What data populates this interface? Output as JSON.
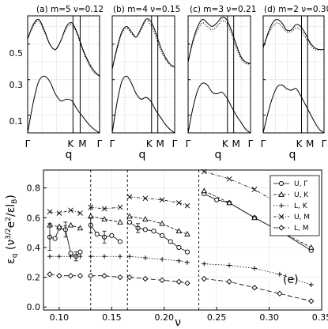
{
  "chart_data": [
    {
      "type": "line",
      "title": "(a) m=5 ν=0.12",
      "xlabel": "q",
      "x_ticks": [
        "Γ",
        "K",
        "M",
        "Γ"
      ],
      "ylim": [
        0.0,
        0.66
      ],
      "y_ticks": [
        0.1,
        0.3,
        0.5
      ],
      "grid": true,
      "series": [
        {
          "style": "solid",
          "values": [
            0.53,
            0.61,
            0.64,
            0.58,
            0.5,
            0.47,
            0.52,
            0.6,
            0.62,
            0.56,
            0.47,
            0.4,
            0.35,
            0.32
          ]
        },
        {
          "style": "dotted",
          "values": [
            0.53,
            0.6,
            0.63,
            0.57,
            0.5,
            0.47,
            0.52,
            0.59,
            0.61,
            0.55,
            0.46,
            0.39,
            0.34,
            0.32
          ]
        },
        {
          "style": "solid",
          "values": [
            0.0,
            0.17,
            0.29,
            0.32,
            0.29,
            0.22,
            0.18,
            0.19,
            0.18,
            0.13,
            0.09,
            0.05,
            0.02,
            0.0
          ]
        }
      ]
    },
    {
      "type": "line",
      "title": "(b) m=4 ν=0.15",
      "xlabel": "q",
      "x_ticks": [
        "Γ",
        "K",
        "M",
        "Γ"
      ],
      "ylim": [
        0.0,
        0.66
      ],
      "grid": true,
      "series": [
        {
          "style": "solid",
          "values": [
            0.36,
            0.48,
            0.57,
            0.6,
            0.57,
            0.54,
            0.59,
            0.64,
            0.63,
            0.57,
            0.49,
            0.43,
            0.39,
            0.37
          ]
        },
        {
          "style": "dotted",
          "values": [
            0.36,
            0.47,
            0.56,
            0.59,
            0.56,
            0.54,
            0.58,
            0.63,
            0.61,
            0.55,
            0.47,
            0.42,
            0.38,
            0.37
          ]
        },
        {
          "style": "solid",
          "values": [
            0.0,
            0.17,
            0.29,
            0.32,
            0.28,
            0.22,
            0.19,
            0.2,
            0.18,
            0.13,
            0.09,
            0.05,
            0.02,
            0.0
          ]
        }
      ]
    },
    {
      "type": "line",
      "title": "(c) m=3 ν=0.21",
      "xlabel": "q",
      "x_ticks": [
        "Γ",
        "K",
        "M",
        "Γ"
      ],
      "ylim": [
        0.0,
        0.66
      ],
      "grid": true,
      "series": [
        {
          "style": "solid",
          "values": [
            0.4,
            0.52,
            0.6,
            0.64,
            0.62,
            0.6,
            0.62,
            0.65,
            0.64,
            0.58,
            0.5,
            0.43,
            0.4,
            0.39
          ]
        },
        {
          "style": "dotted",
          "values": [
            0.4,
            0.51,
            0.58,
            0.62,
            0.6,
            0.58,
            0.6,
            0.63,
            0.62,
            0.56,
            0.48,
            0.42,
            0.39,
            0.39
          ]
        },
        {
          "style": "solid",
          "values": [
            0.0,
            0.14,
            0.24,
            0.28,
            0.27,
            0.23,
            0.22,
            0.23,
            0.2,
            0.15,
            0.1,
            0.06,
            0.02,
            0.0
          ]
        }
      ]
    },
    {
      "type": "line",
      "title": "(d) m=2 ν=0.30",
      "xlabel": "q",
      "x_ticks": [
        "Γ",
        "K",
        "M",
        "Γ"
      ],
      "ylim": [
        0.0,
        0.66
      ],
      "grid": true,
      "series": [
        {
          "style": "solid",
          "values": [
            0.48,
            0.56,
            0.62,
            0.64,
            0.62,
            0.58,
            0.58,
            0.61,
            0.6,
            0.56,
            0.51,
            0.48,
            0.47,
            0.47
          ]
        },
        {
          "style": "dotted",
          "values": [
            0.48,
            0.55,
            0.6,
            0.62,
            0.6,
            0.57,
            0.57,
            0.59,
            0.58,
            0.54,
            0.5,
            0.47,
            0.47,
            0.47
          ]
        },
        {
          "style": "solid",
          "values": [
            0.0,
            0.11,
            0.2,
            0.26,
            0.27,
            0.25,
            0.24,
            0.25,
            0.21,
            0.16,
            0.11,
            0.06,
            0.02,
            0.0
          ]
        }
      ]
    },
    {
      "type": "scatter",
      "title": "",
      "annotation": "(e)",
      "xlabel": "ν",
      "ylabel": "εq (ν3/2e2/εlB)",
      "xlim": [
        0.085,
        0.35
      ],
      "ylim": [
        -0.02,
        0.92
      ],
      "x_ticks": [
        "0.10",
        "0.15",
        "0.20",
        "0.25",
        "0.30",
        "0.35"
      ],
      "y_ticks": [
        "0.0",
        "0.2",
        "0.4",
        "0.6",
        "0.8"
      ],
      "vlines": [
        0.13,
        0.165,
        0.233
      ],
      "grid": true,
      "legend_position": "top-right",
      "series": [
        {
          "name": "U, Γ",
          "marker": "circle",
          "line": "solid",
          "x": [
            0.091,
            0.096,
            0.1,
            0.106,
            0.111,
            0.116,
            0.12,
            0.13,
            0.136,
            0.143,
            0.15,
            0.158,
            0.167,
            0.175,
            0.182,
            0.19,
            0.198,
            0.206,
            0.214,
            0.222,
            0.238,
            0.25,
            0.262,
            0.286,
            0.31,
            0.34
          ],
          "y": [
            0.47,
            0.46,
            0.53,
            0.52,
            0.36,
            0.34,
            0.37,
            0.55,
            0.49,
            0.47,
            0.48,
            0.44,
            0.57,
            0.53,
            0.52,
            0.51,
            0.48,
            0.44,
            0.4,
            0.37,
            0.76,
            0.72,
            0.7,
            0.6,
            0.51,
            0.38
          ]
        },
        {
          "name": "U, K",
          "marker": "triangle",
          "line": "dashed",
          "x": [
            0.091,
            0.1,
            0.111,
            0.12,
            0.13,
            0.143,
            0.158,
            0.167,
            0.182,
            0.198,
            0.214,
            0.222,
            0.238,
            0.262,
            0.286,
            0.31,
            0.34
          ],
          "y": [
            0.55,
            0.54,
            0.55,
            0.53,
            0.61,
            0.59,
            0.57,
            0.61,
            0.59,
            0.56,
            0.51,
            0.49,
            0.78,
            0.7,
            0.6,
            0.51,
            0.4
          ]
        },
        {
          "name": "L, K",
          "marker": "plus",
          "line": "dotted",
          "x": [
            0.091,
            0.1,
            0.111,
            0.12,
            0.13,
            0.143,
            0.158,
            0.167,
            0.182,
            0.198,
            0.214,
            0.222,
            0.238,
            0.262,
            0.286,
            0.31,
            0.34
          ],
          "y": [
            0.34,
            0.34,
            0.34,
            0.34,
            0.34,
            0.34,
            0.34,
            0.34,
            0.33,
            0.32,
            0.31,
            0.3,
            0.29,
            0.28,
            0.26,
            0.22,
            0.15
          ]
        },
        {
          "name": "U, M",
          "marker": "cross",
          "line": "dashdot",
          "x": [
            0.091,
            0.1,
            0.111,
            0.12,
            0.13,
            0.143,
            0.158,
            0.167,
            0.182,
            0.198,
            0.214,
            0.222,
            0.238,
            0.262,
            0.286,
            0.31,
            0.34
          ],
          "y": [
            0.64,
            0.63,
            0.65,
            0.63,
            0.67,
            0.66,
            0.67,
            0.74,
            0.73,
            0.72,
            0.7,
            0.68,
            0.91,
            0.86,
            0.79,
            0.69,
            0.55
          ]
        },
        {
          "name": "L, M",
          "marker": "diamond",
          "line": "longdash",
          "x": [
            0.091,
            0.1,
            0.111,
            0.12,
            0.13,
            0.143,
            0.158,
            0.167,
            0.182,
            0.198,
            0.214,
            0.222,
            0.238,
            0.262,
            0.286,
            0.31,
            0.34
          ],
          "y": [
            0.22,
            0.21,
            0.21,
            0.21,
            0.21,
            0.21,
            0.2,
            0.2,
            0.19,
            0.18,
            0.17,
            0.16,
            0.19,
            0.17,
            0.13,
            0.09,
            0.04
          ]
        }
      ]
    }
  ]
}
